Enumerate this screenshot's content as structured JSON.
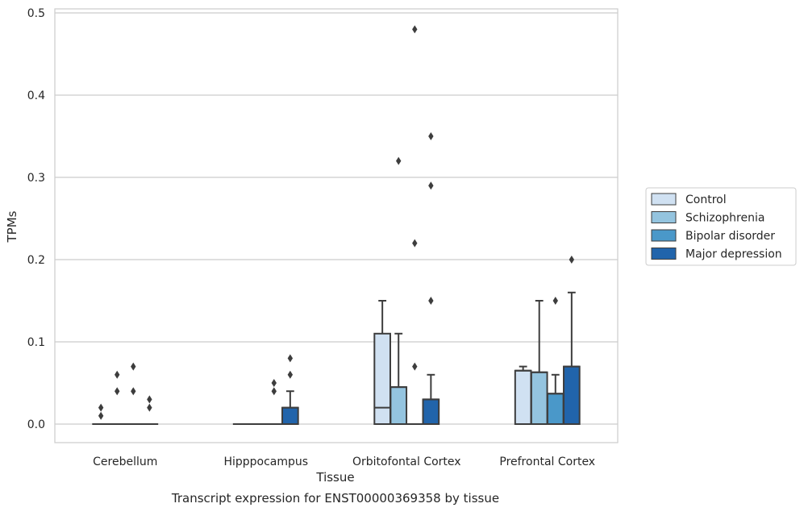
{
  "chart_data": {
    "type": "box",
    "caption": "Transcript expression for ENST00000369358 by tissue",
    "xlabel": "Tissue",
    "ylabel": "TPMs",
    "ylim": [
      -0.023,
      0.505
    ],
    "yticks": [
      0.0,
      0.1,
      0.2,
      0.3,
      0.4,
      0.5
    ],
    "ytick_labels": [
      "0.0",
      "0.1",
      "0.2",
      "0.3",
      "0.4",
      "0.5"
    ],
    "grid": true,
    "legend_position": "right-center",
    "categories": [
      "Cerebellum",
      "Hipppocampus",
      "Orbitofontal Cortex",
      "Prefrontal Cortex"
    ],
    "series": [
      {
        "name": "Control",
        "color": "#d0e1f2",
        "boxes": [
          {
            "q1": 0,
            "median": 0,
            "q3": 0,
            "whisker_low": 0,
            "whisker_high": 0,
            "outliers": [
              0.02,
              0.01
            ]
          },
          {
            "q1": 0,
            "median": 0,
            "q3": 0,
            "whisker_low": 0,
            "whisker_high": 0,
            "outliers": []
          },
          {
            "q1": 0,
            "median": 0.02,
            "q3": 0.11,
            "whisker_low": 0,
            "whisker_high": 0.15,
            "outliers": []
          },
          {
            "q1": 0,
            "median": 0.065,
            "q3": 0.065,
            "whisker_low": 0,
            "whisker_high": 0.07,
            "outliers": []
          }
        ]
      },
      {
        "name": "Schizophrenia",
        "color": "#94c4df",
        "boxes": [
          {
            "q1": 0,
            "median": 0,
            "q3": 0,
            "whisker_low": 0,
            "whisker_high": 0,
            "outliers": [
              0.06,
              0.04
            ]
          },
          {
            "q1": 0,
            "median": 0,
            "q3": 0,
            "whisker_low": 0,
            "whisker_high": 0,
            "outliers": []
          },
          {
            "q1": 0,
            "median": 0.045,
            "q3": 0.045,
            "whisker_low": 0,
            "whisker_high": 0.11,
            "outliers": [
              0.32
            ]
          },
          {
            "q1": 0,
            "median": 0.063,
            "q3": 0.063,
            "whisker_low": 0,
            "whisker_high": 0.15,
            "outliers": []
          }
        ]
      },
      {
        "name": "Bipolar disorder",
        "color": "#4a98c9",
        "boxes": [
          {
            "q1": 0,
            "median": 0,
            "q3": 0,
            "whisker_low": 0,
            "whisker_high": 0,
            "outliers": [
              0.07,
              0.04
            ]
          },
          {
            "q1": 0,
            "median": 0,
            "q3": 0,
            "whisker_low": 0,
            "whisker_high": 0,
            "outliers": [
              0.05,
              0.04
            ]
          },
          {
            "q1": 0,
            "median": 0,
            "q3": 0,
            "whisker_low": 0,
            "whisker_high": 0,
            "outliers": [
              0.48,
              0.22,
              0.07
            ]
          },
          {
            "q1": 0,
            "median": 0.037,
            "q3": 0.037,
            "whisker_low": 0,
            "whisker_high": 0.06,
            "outliers": [
              0.15
            ]
          }
        ]
      },
      {
        "name": "Major depression",
        "color": "#2164ab",
        "boxes": [
          {
            "q1": 0,
            "median": 0,
            "q3": 0,
            "whisker_low": 0,
            "whisker_high": 0,
            "outliers": [
              0.03,
              0.02
            ]
          },
          {
            "q1": 0,
            "median": 0.02,
            "q3": 0.02,
            "whisker_low": 0,
            "whisker_high": 0.04,
            "outliers": [
              0.08,
              0.06
            ]
          },
          {
            "q1": 0,
            "median": 0.03,
            "q3": 0.03,
            "whisker_low": 0,
            "whisker_high": 0.06,
            "outliers": [
              0.35,
              0.29,
              0.15
            ]
          },
          {
            "q1": 0,
            "median": 0.07,
            "q3": 0.07,
            "whisker_low": 0,
            "whisker_high": 0.16,
            "outliers": [
              0.2
            ]
          }
        ]
      }
    ]
  }
}
